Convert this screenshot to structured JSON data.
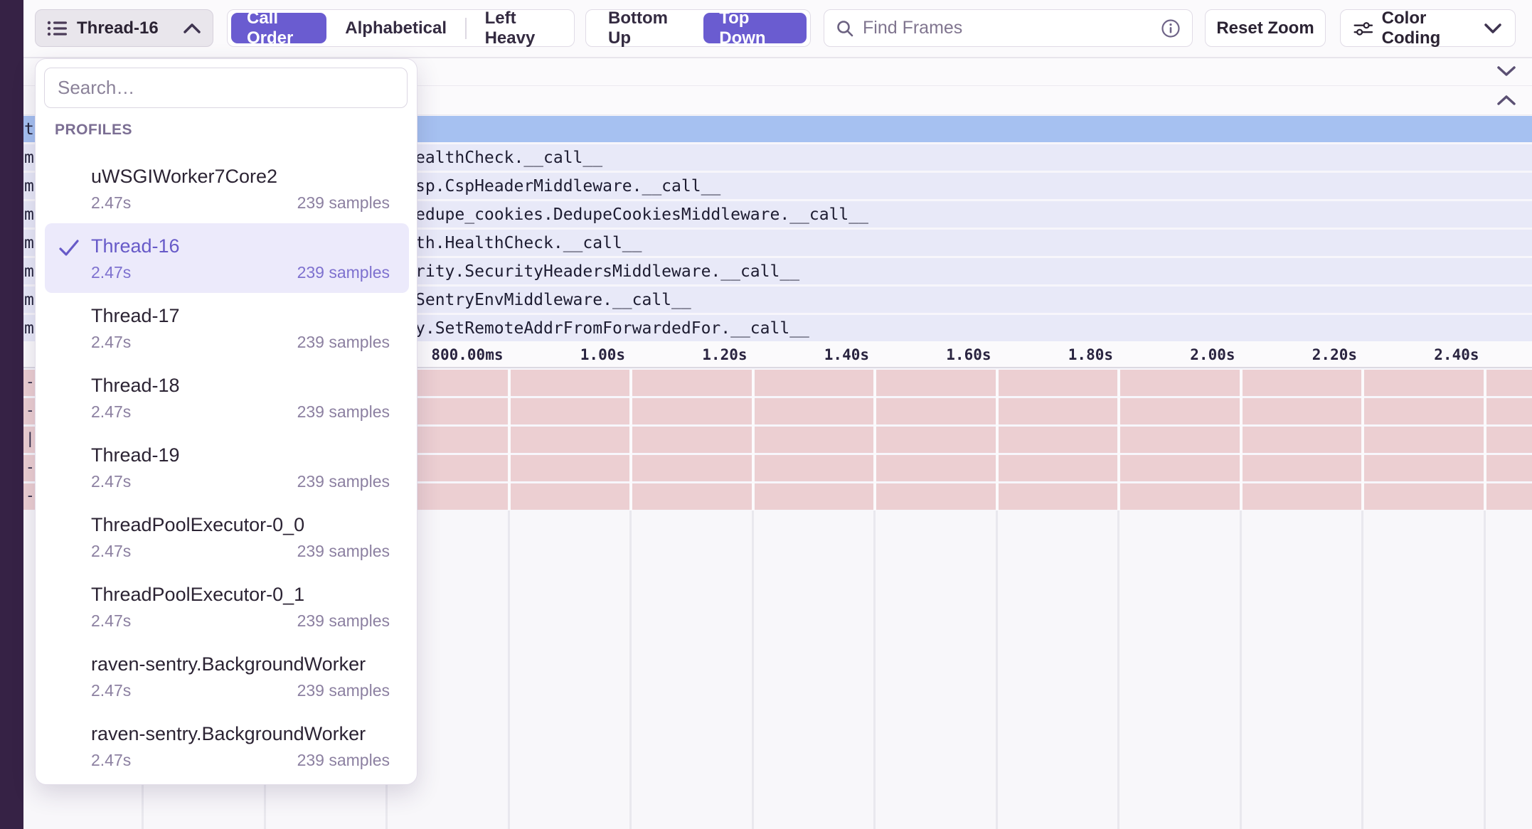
{
  "toolbar": {
    "thread_selector_label": "Thread-16",
    "sort_modes": [
      "Call Order",
      "Alphabetical",
      "Left Heavy"
    ],
    "active_sort": "Call Order",
    "direction_modes": [
      "Bottom Up",
      "Top Down"
    ],
    "active_direction": "Top Down",
    "find_placeholder": "Find Frames",
    "reset_zoom_label": "Reset Zoom",
    "color_coding_label": "Color Coding"
  },
  "dropdown": {
    "search_placeholder": "Search…",
    "section_label": "PROFILES",
    "items": [
      {
        "name": "uWSGIWorker7Core2",
        "duration": "2.47s",
        "samples": "239 samples",
        "selected": false
      },
      {
        "name": "Thread-16",
        "duration": "2.47s",
        "samples": "239 samples",
        "selected": true
      },
      {
        "name": "Thread-17",
        "duration": "2.47s",
        "samples": "239 samples",
        "selected": false
      },
      {
        "name": "Thread-18",
        "duration": "2.47s",
        "samples": "239 samples",
        "selected": false
      },
      {
        "name": "Thread-19",
        "duration": "2.47s",
        "samples": "239 samples",
        "selected": false
      },
      {
        "name": "ThreadPoolExecutor-0_0",
        "duration": "2.47s",
        "samples": "239 samples",
        "selected": false
      },
      {
        "name": "ThreadPoolExecutor-0_1",
        "duration": "2.47s",
        "samples": "239 samples",
        "selected": false
      },
      {
        "name": "raven-sentry.BackgroundWorker",
        "duration": "2.47s",
        "samples": "239 samples",
        "selected": false
      },
      {
        "name": "raven-sentry.BackgroundWorker",
        "duration": "2.47s",
        "samples": "239 samples",
        "selected": false
      }
    ]
  },
  "flame": {
    "selected_row_edge": "t",
    "rows": [
      {
        "edge": "m",
        "label": "ealthCheck.__call__"
      },
      {
        "edge": "m",
        "label": "sp.CspHeaderMiddleware.__call__"
      },
      {
        "edge": "m",
        "label": "edupe_cookies.DedupeCookiesMiddleware.__call__"
      },
      {
        "edge": "m",
        "label": "th.HealthCheck.__call__"
      },
      {
        "edge": "m",
        "label": "rity.SecurityHeadersMiddleware.__call__"
      },
      {
        "edge": "m",
        "label": "SentryEnvMiddleware.__call__"
      },
      {
        "edge": "m",
        "label": "y.SetRemoteAddrFromForwardedFor.__call__"
      }
    ],
    "axis_ticks": [
      "800.00ms",
      "1.00s",
      "1.20s",
      "1.40s",
      "1.60s",
      "1.80s",
      "2.00s",
      "2.20s",
      "2.40s"
    ],
    "pink_row_edges": [
      "-",
      "-",
      "|",
      "-",
      "-"
    ]
  },
  "colors": {
    "accent_purple": "#6a5cd0",
    "selected_frame_blue": "#a6c1f1",
    "frame_lavender": "#e8e9f8",
    "minimap_pink": "#eccfd2",
    "rail_dark": "#362245"
  }
}
